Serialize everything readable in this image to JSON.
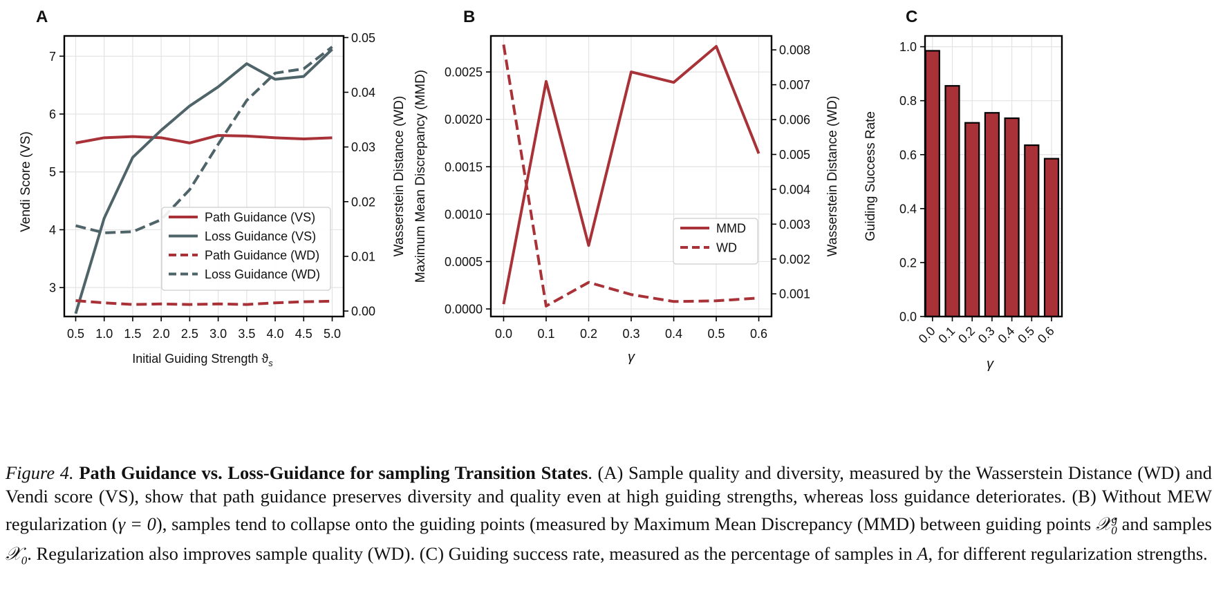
{
  "colors": {
    "path": "#a83238",
    "loss": "#4f6469",
    "bar": "#a83238",
    "grid": "#e3e3e3",
    "axis": "#000000"
  },
  "panels": [
    {
      "letter": "A",
      "xlabel": "Initial Guiding Strength ϑ",
      "xlabel_sub": "s",
      "ylabel_left": "Vendi Score (VS)",
      "ylabel_right": "Wasserstein Distance (WD)",
      "legend": [
        "Path Guidance (VS)",
        "Loss Guidance (VS)",
        "Path Guidance (WD)",
        "Loss Guidance (WD)"
      ]
    },
    {
      "letter": "B",
      "xlabel": "γ",
      "ylabel_left": "Maximum Mean Discrepancy (MMD)",
      "ylabel_right": "Wasserstein Distance (WD)",
      "legend": [
        "MMD",
        "WD"
      ]
    },
    {
      "letter": "C",
      "xlabel": "γ",
      "ylabel_left": "Guiding Success Rate"
    }
  ],
  "chart_data": [
    {
      "type": "line",
      "x": [
        0.5,
        1.0,
        1.5,
        2.0,
        2.5,
        3.0,
        3.5,
        4.0,
        4.5,
        5.0
      ],
      "xticks": [
        "0.5",
        "1.0",
        "1.5",
        "2.0",
        "2.5",
        "3.0",
        "3.5",
        "4.0",
        "4.5",
        "5.0"
      ],
      "xlim": [
        0.3,
        5.2
      ],
      "ylim_left": [
        2.5,
        7.35
      ],
      "yticks_left": [
        "3",
        "4",
        "5",
        "6",
        "7"
      ],
      "ylim_right": [
        -0.001,
        0.0503
      ],
      "yticks_right": [
        "0.00",
        "0.01",
        "0.02",
        "0.03",
        "0.04",
        "0.05"
      ],
      "grid": true,
      "legend_position": "lower-right",
      "series": [
        {
          "name": "Path Guidance (VS)",
          "axis": "left",
          "style": "solid",
          "color": "#a83238",
          "values": [
            5.5,
            5.59,
            5.61,
            5.59,
            5.5,
            5.63,
            5.62,
            5.59,
            5.57,
            5.59
          ]
        },
        {
          "name": "Loss Guidance (VS)",
          "axis": "left",
          "style": "solid",
          "color": "#4f6469",
          "values": [
            2.55,
            4.2,
            5.25,
            5.72,
            6.14,
            6.47,
            6.87,
            6.6,
            6.65,
            7.12
          ]
        },
        {
          "name": "Path Guidance (WD)",
          "axis": "right",
          "style": "dashed",
          "color": "#a83238",
          "values": [
            0.0019,
            0.0015,
            0.0012,
            0.0013,
            0.0012,
            0.0013,
            0.0012,
            0.0015,
            0.0017,
            0.0018
          ]
        },
        {
          "name": "Loss Guidance (WD)",
          "axis": "right",
          "style": "dashed",
          "color": "#4f6469",
          "values": [
            0.0156,
            0.0143,
            0.0145,
            0.0167,
            0.0222,
            0.0305,
            0.0385,
            0.0435,
            0.0443,
            0.0483
          ]
        }
      ]
    },
    {
      "type": "line",
      "x": [
        0.0,
        0.1,
        0.2,
        0.3,
        0.4,
        0.5,
        0.6
      ],
      "xticks": [
        "0.0",
        "0.1",
        "0.2",
        "0.3",
        "0.4",
        "0.5",
        "0.6"
      ],
      "xlim": [
        -0.03,
        0.63
      ],
      "ylim_left": [
        -8e-05,
        0.00288
      ],
      "yticks_left": [
        "0.0000",
        "0.0005",
        "0.0010",
        "0.0015",
        "0.0020",
        "0.0025"
      ],
      "ylim_right": [
        0.00035,
        0.0084
      ],
      "yticks_right": [
        "0.001",
        "0.002",
        "0.003",
        "0.004",
        "0.005",
        "0.006",
        "0.007",
        "0.008"
      ],
      "grid": true,
      "legend_position": "lower-right",
      "series": [
        {
          "name": "MMD",
          "axis": "left",
          "style": "solid",
          "color": "#a83238",
          "values": [
            5e-05,
            0.0024,
            0.00067,
            0.0025,
            0.00239,
            0.00277,
            0.00164
          ]
        },
        {
          "name": "WD",
          "axis": "right",
          "style": "dashed",
          "color": "#a83238",
          "values": [
            0.00815,
            0.00065,
            0.00133,
            0.00098,
            0.00078,
            0.0008,
            0.00088
          ]
        }
      ]
    },
    {
      "type": "bar",
      "categories": [
        "0.0",
        "0.1",
        "0.2",
        "0.3",
        "0.4",
        "0.5",
        "0.6"
      ],
      "values": [
        0.985,
        0.855,
        0.718,
        0.755,
        0.735,
        0.635,
        0.585
      ],
      "ylim": [
        0,
        1.04
      ],
      "yticks": [
        "0.0",
        "0.2",
        "0.4",
        "0.6",
        "0.8",
        "1.0"
      ],
      "grid": true
    }
  ],
  "caption": {
    "label": "Figure 4.",
    "title": "Path Guidance vs.  Loss-Guidance for sampling Transition States",
    "p1": ".  (A) Sample quality and diversity, measured by the Wasserstein Distance (WD) and Vendi score (VS), show that path guidance preserves diversity and quality even at high guiding strengths, whereas loss guidance deteriorates. (B) Without MEW regularization (",
    "math_gamma0": "γ = 0",
    "p2": "), samples tend to collapse onto the guiding points (measured by Maximum Mean Discrepancy (MMD) between guiding points ",
    "math_xg": "𝒳",
    "math_xg_sup": "g",
    "math_xg_sub": "0",
    "p3": " and samples ",
    "math_x0": "𝒳",
    "math_x0_sub": "0",
    "p4": ". Regularization also improves sample quality (WD). (C) Guiding success rate, measured as the percentage of samples in ",
    "math_A": "A",
    "p5": ", for different regularization strengths."
  }
}
